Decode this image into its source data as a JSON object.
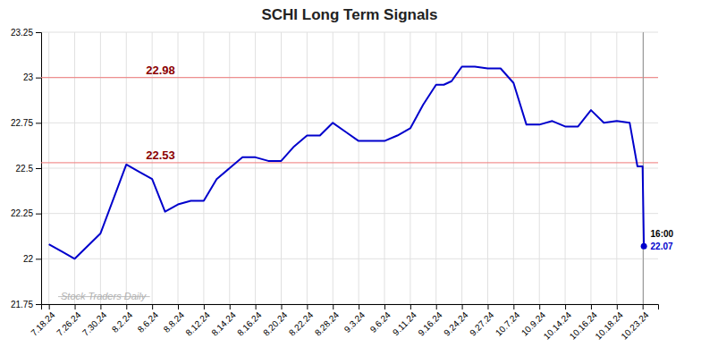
{
  "chart_data": {
    "type": "line",
    "title": "SCHI Long Term Signals",
    "color": "#0000cc",
    "x": [
      0,
      0.5,
      1,
      2,
      3,
      3.5,
      4,
      4.5,
      5,
      5.5,
      6,
      6.5,
      7,
      7.5,
      8,
      8.5,
      9,
      9.5,
      10,
      10.5,
      11,
      11.5,
      12,
      12.5,
      13,
      13.5,
      14,
      14.5,
      15,
      15.3,
      15.6,
      16,
      16.5,
      17,
      17.5,
      18,
      18.5,
      19,
      19.5,
      20,
      20.5,
      21,
      21.5,
      22,
      22.5,
      22.8,
      23,
      23.05
    ],
    "values": [
      22.08,
      22.04,
      22.0,
      22.14,
      22.52,
      22.48,
      22.44,
      22.26,
      22.3,
      22.32,
      22.32,
      22.44,
      22.5,
      22.56,
      22.56,
      22.54,
      22.54,
      22.62,
      22.68,
      22.68,
      22.75,
      22.7,
      22.65,
      22.65,
      22.65,
      22.68,
      22.72,
      22.85,
      22.96,
      22.96,
      22.98,
      23.06,
      23.06,
      23.05,
      23.05,
      22.97,
      22.74,
      22.74,
      22.76,
      22.73,
      22.73,
      22.82,
      22.75,
      22.76,
      22.75,
      22.51,
      22.51,
      22.07
    ],
    "xlim": [
      -0.3,
      23.6
    ],
    "xticks": [
      {
        "value": 0,
        "label": "7.18.24"
      },
      {
        "value": 1,
        "label": "7.26.24"
      },
      {
        "value": 2,
        "label": "7.30.24"
      },
      {
        "value": 3,
        "label": "8.2.24"
      },
      {
        "value": 4,
        "label": "8.6.24"
      },
      {
        "value": 5,
        "label": "8.8.24"
      },
      {
        "value": 6,
        "label": "8.12.24"
      },
      {
        "value": 7,
        "label": "8.14.24"
      },
      {
        "value": 8,
        "label": "8.16.24"
      },
      {
        "value": 9,
        "label": "8.20.24"
      },
      {
        "value": 10,
        "label": "8.22.24"
      },
      {
        "value": 11,
        "label": "8.28.24"
      },
      {
        "value": 12,
        "label": "9.3.24"
      },
      {
        "value": 13,
        "label": "9.6.24"
      },
      {
        "value": 14,
        "label": "9.11.24"
      },
      {
        "value": 15,
        "label": "9.16.24"
      },
      {
        "value": 16,
        "label": "9.24.24"
      },
      {
        "value": 17,
        "label": "9.27.24"
      },
      {
        "value": 18,
        "label": "10.7.24"
      },
      {
        "value": 19,
        "label": "10.9.24"
      },
      {
        "value": 20,
        "label": "10.14.24"
      },
      {
        "value": 21,
        "label": "10.16.24"
      },
      {
        "value": 22,
        "label": "10.18.24"
      },
      {
        "value": 23,
        "label": "10.23.24"
      }
    ],
    "ylim": [
      21.75,
      23.25
    ],
    "yticks": [
      21.75,
      22,
      22.25,
      22.5,
      22.75,
      23,
      23.25
    ],
    "grid": true,
    "hlines": [
      {
        "value": 23.0,
        "color": "#f08080"
      },
      {
        "value": 22.53,
        "color": "#f08080"
      }
    ],
    "annotations": [
      {
        "text": "22.98",
        "color": "#8b0000"
      },
      {
        "text": "22.53",
        "color": "#8b0000"
      }
    ],
    "vlines": [
      {
        "value": 23.03,
        "color": "#999999"
      }
    ],
    "end_labels": [
      {
        "text": "16:00",
        "color": "#000000"
      },
      {
        "text": "22.07",
        "color": "#0000cc"
      }
    ],
    "watermark": {
      "text": "Stock Traders Daily",
      "color": "#b0b0b0"
    }
  }
}
